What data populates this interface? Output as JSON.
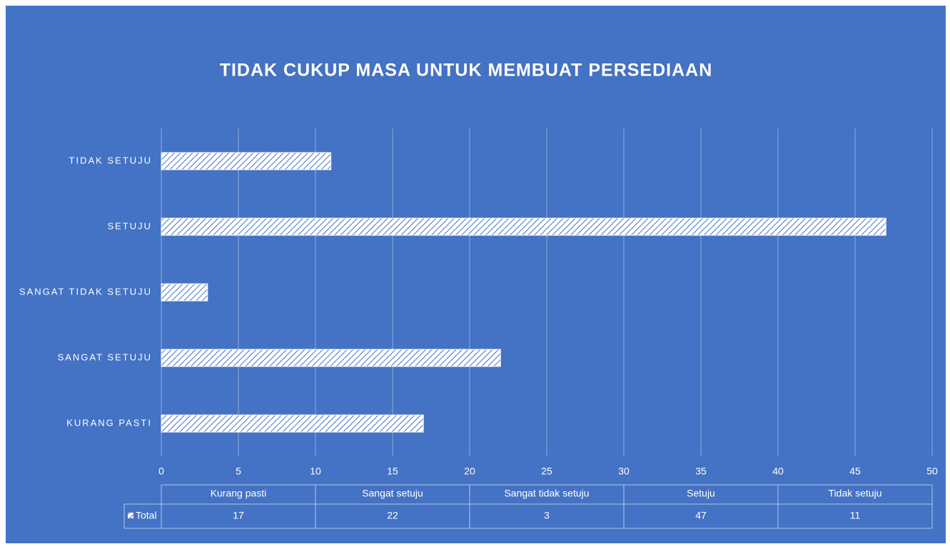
{
  "chart_data": {
    "type": "bar",
    "orientation": "horizontal",
    "title": "TIDAK CUKUP MASA UNTUK MEMBUAT PERSEDIAAN",
    "categories": [
      "Kurang pasti",
      "Sangat setuju",
      "Sangat tidak setuju",
      "Setuju",
      "Tidak setuju"
    ],
    "series": [
      {
        "name": "Total",
        "color": "#ffffff",
        "values": [
          17,
          22,
          3,
          47,
          11
        ]
      }
    ],
    "xlim": [
      0,
      50
    ],
    "xticks": [
      0,
      5,
      10,
      15,
      20,
      25,
      30,
      35,
      40,
      45,
      50
    ],
    "grid": true,
    "data_table": true
  }
}
